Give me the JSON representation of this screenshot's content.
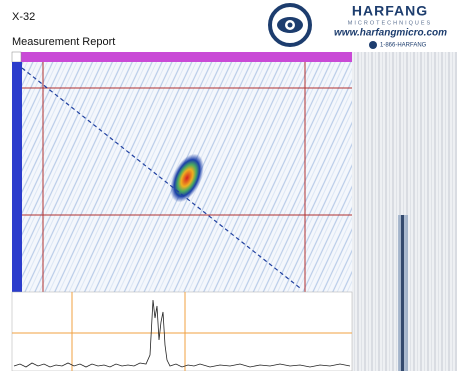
{
  "header": {
    "id": "X-32",
    "title": "Measurement Report"
  },
  "logo": {
    "brand": "HARFANG",
    "subtitle": "MICROTECHNIQUES",
    "website": "www.harfangmicro.com",
    "phone": "1-866-HARFANG"
  }
}
